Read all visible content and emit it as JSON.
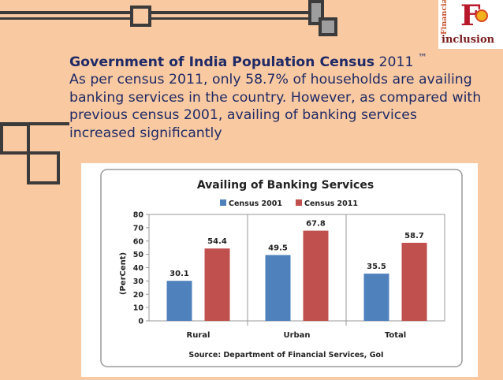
{
  "intro": {
    "heading": "Government of India Population Census",
    "year": "2011",
    "tm": "™",
    "body": "As per census 2011, only 58.7% of households are availing banking services in the country. However, as compared with previous census 2001, availing of banking services increased significantly"
  },
  "logo": {
    "vertical_text": "Financial",
    "letter": "F",
    "word": "inclusion"
  },
  "colors": {
    "background": "#f9c9a1",
    "census_2001": "#4f81bd",
    "census_2011": "#c0504d",
    "text": "#1f2a66"
  },
  "chart_data": {
    "type": "bar",
    "title": "Availing of Banking Services",
    "ylabel": "(PerCent)",
    "xlabel": "",
    "categories": [
      "Rural",
      "Urban",
      "Total"
    ],
    "series": [
      {
        "name": "Census 2001",
        "values": [
          30.1,
          49.5,
          35.5
        ],
        "color": "#4f81bd"
      },
      {
        "name": "Census 2011",
        "values": [
          54.4,
          67.8,
          58.7
        ],
        "color": "#c0504d"
      }
    ],
    "data_labels": [
      [
        "30.1",
        "49.5",
        "35.5"
      ],
      [
        "54.4",
        "67.8",
        "58.7"
      ]
    ],
    "ylim": [
      0,
      80
    ],
    "yticks": [
      "0",
      "10",
      "20",
      "30",
      "40",
      "50",
      "60",
      "70",
      "80"
    ],
    "legend": "top",
    "grid": false,
    "source": "Source: Department of Financial Services, GoI"
  }
}
